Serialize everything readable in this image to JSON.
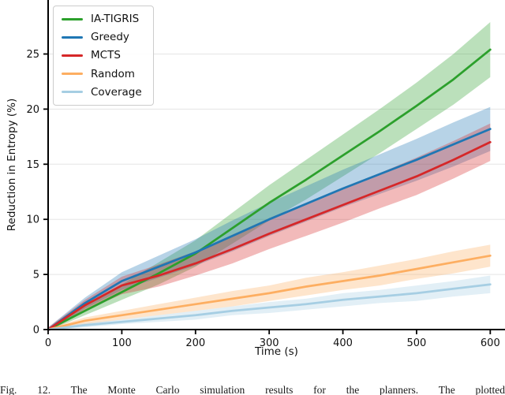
{
  "figure": {
    "caption": "Fig. 12. The Monte Carlo simulation results for the planners. The plotted"
  },
  "chart_data": {
    "type": "line",
    "title": "",
    "xlabel": "Time (s)",
    "ylabel": "Reduction in Entropy (%)",
    "xlim": [
      0,
      620
    ],
    "ylim": [
      0,
      29.9
    ],
    "xticks": [
      0,
      100,
      200,
      300,
      400,
      500,
      600
    ],
    "yticks": [
      0,
      5,
      10,
      15,
      20,
      25
    ],
    "grid": "horizontal-only",
    "grid_color": "#e5e5e5",
    "legend_position": "upper-left",
    "band_alpha": 0.32,
    "x": [
      0,
      50,
      100,
      150,
      200,
      250,
      300,
      350,
      400,
      450,
      500,
      550,
      600
    ],
    "series": [
      {
        "name": "IA-TIGRIS",
        "color": "#2ca02c",
        "values": [
          0,
          1.7,
          3.4,
          5.1,
          6.9,
          9.2,
          11.5,
          13.6,
          15.8,
          18.0,
          20.3,
          22.7,
          25.4
        ],
        "band_halfwidth": [
          0.1,
          0.4,
          0.7,
          1.0,
          1.2,
          1.4,
          1.6,
          1.8,
          1.9,
          2.0,
          2.1,
          2.3,
          2.5
        ]
      },
      {
        "name": "Greedy",
        "color": "#1f77b4",
        "values": [
          0,
          2.4,
          4.4,
          5.7,
          7.0,
          8.5,
          10.0,
          11.4,
          12.8,
          14.1,
          15.4,
          16.8,
          18.2
        ],
        "band_halfwidth": [
          0.2,
          0.5,
          0.8,
          1.0,
          1.2,
          1.4,
          1.5,
          1.6,
          1.7,
          1.8,
          1.9,
          2.0,
          2.0
        ]
      },
      {
        "name": "MCTS",
        "color": "#d62728",
        "values": [
          0,
          2.2,
          4.0,
          4.9,
          6.0,
          7.3,
          8.7,
          10.0,
          11.3,
          12.6,
          13.9,
          15.4,
          17.0
        ],
        "band_halfwidth": [
          0.2,
          0.5,
          0.8,
          1.0,
          1.1,
          1.3,
          1.4,
          1.5,
          1.6,
          1.6,
          1.7,
          1.7,
          1.7
        ]
      },
      {
        "name": "Random",
        "color": "#fdae61",
        "values": [
          0,
          0.8,
          1.3,
          1.8,
          2.3,
          2.8,
          3.3,
          3.9,
          4.4,
          4.9,
          5.5,
          6.1,
          6.7
        ],
        "band_halfwidth": [
          0.1,
          0.3,
          0.4,
          0.5,
          0.6,
          0.7,
          0.7,
          0.8,
          0.8,
          0.9,
          0.9,
          1.0,
          1.0
        ]
      },
      {
        "name": "Coverage",
        "color": "#a6cee3",
        "values": [
          0,
          0.4,
          0.7,
          1.0,
          1.3,
          1.7,
          2.0,
          2.3,
          2.7,
          3.0,
          3.3,
          3.7,
          4.1
        ],
        "band_halfwidth": [
          0.1,
          0.2,
          0.2,
          0.3,
          0.4,
          0.4,
          0.5,
          0.5,
          0.6,
          0.6,
          0.7,
          0.7,
          0.8
        ]
      }
    ]
  }
}
